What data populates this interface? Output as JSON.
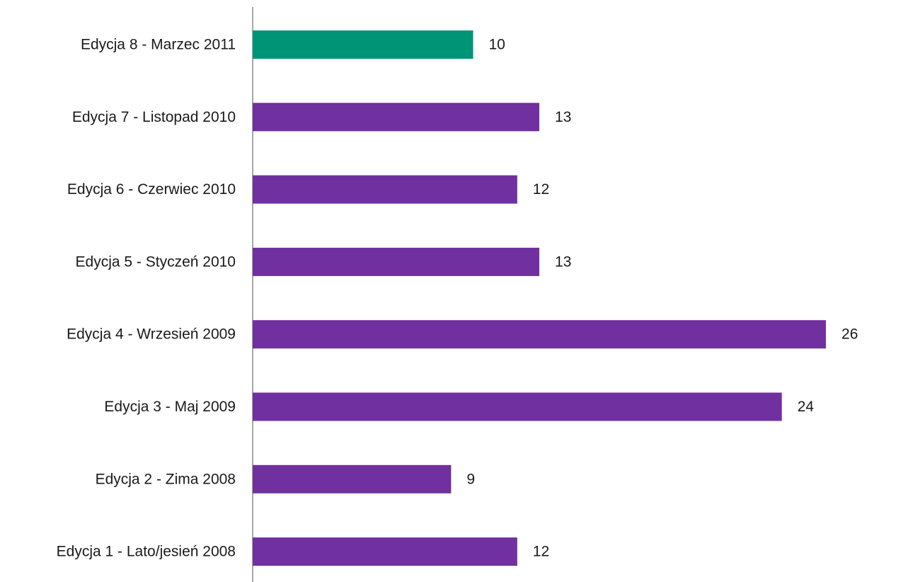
{
  "chart_data": {
    "type": "bar",
    "orientation": "horizontal",
    "categories": [
      "Edycja 8 - Marzec  2011",
      "Edycja 7 - Listopad 2010",
      "Edycja 6 - Czerwiec  2010",
      "Edycja 5 - Styczeń 2010",
      "Edycja 4 - Wrzesień  2009",
      "Edycja 3 - Maj 2009",
      "Edycja 2 - Zima 2008",
      "Edycja 1 - Lato/jesień 2008"
    ],
    "values": [
      10,
      13,
      12,
      13,
      26,
      24,
      9,
      12
    ],
    "bar_colors": [
      "#009477",
      "#7030a0",
      "#7030a0",
      "#7030a0",
      "#7030a0",
      "#7030a0",
      "#7030a0",
      "#7030a0"
    ],
    "data_labels": [
      "10",
      "13",
      "12",
      "13",
      "26",
      "24",
      "9",
      "12"
    ],
    "xlim": [
      0,
      26
    ],
    "grid": false,
    "legend": "none"
  }
}
